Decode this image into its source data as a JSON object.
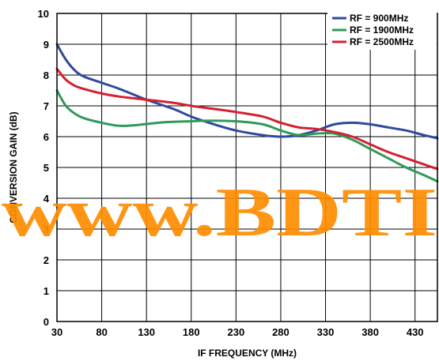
{
  "watermark": "www.BDTI",
  "chart_data": {
    "type": "line",
    "title": "",
    "xlabel": "IF FREQUENCY (MHz)",
    "ylabel": "CONVERSION GAIN (dB)",
    "xlim": [
      30,
      455
    ],
    "ylim": [
      0,
      10
    ],
    "xticks": [
      30,
      80,
      130,
      180,
      230,
      280,
      330,
      380,
      430
    ],
    "yticks": [
      0,
      1,
      2,
      3,
      4,
      5,
      6,
      7,
      8,
      9,
      10
    ],
    "grid": true,
    "legend_position": "top-right",
    "series": [
      {
        "name": "RF = 900MHz",
        "color": "#2e4a9e",
        "x": [
          30,
          40,
          50,
          60,
          80,
          100,
          130,
          160,
          180,
          200,
          230,
          260,
          280,
          300,
          320,
          340,
          360,
          380,
          400,
          420,
          440,
          455
        ],
        "y": [
          9.0,
          8.5,
          8.15,
          7.95,
          7.75,
          7.55,
          7.2,
          6.9,
          6.65,
          6.45,
          6.2,
          6.05,
          6.0,
          6.05,
          6.2,
          6.4,
          6.45,
          6.4,
          6.3,
          6.2,
          6.05,
          5.95
        ]
      },
      {
        "name": "RF = 1900MHz",
        "color": "#2e9a5a",
        "x": [
          30,
          40,
          50,
          60,
          80,
          100,
          120,
          150,
          180,
          200,
          230,
          260,
          280,
          300,
          320,
          340,
          360,
          380,
          400,
          420,
          440,
          455
        ],
        "y": [
          7.5,
          7.0,
          6.75,
          6.6,
          6.45,
          6.35,
          6.38,
          6.47,
          6.5,
          6.52,
          6.5,
          6.4,
          6.2,
          6.05,
          6.1,
          6.1,
          5.9,
          5.6,
          5.3,
          5.0,
          4.75,
          4.55
        ]
      },
      {
        "name": "RF = 2500MHz",
        "color": "#d42030",
        "x": [
          30,
          40,
          50,
          60,
          80,
          100,
          130,
          160,
          180,
          200,
          230,
          260,
          280,
          300,
          320,
          340,
          360,
          380,
          400,
          420,
          440,
          455
        ],
        "y": [
          8.2,
          7.85,
          7.65,
          7.55,
          7.4,
          7.3,
          7.2,
          7.1,
          7.0,
          6.92,
          6.8,
          6.65,
          6.45,
          6.3,
          6.25,
          6.15,
          6.0,
          5.75,
          5.5,
          5.3,
          5.1,
          4.95
        ]
      }
    ]
  }
}
